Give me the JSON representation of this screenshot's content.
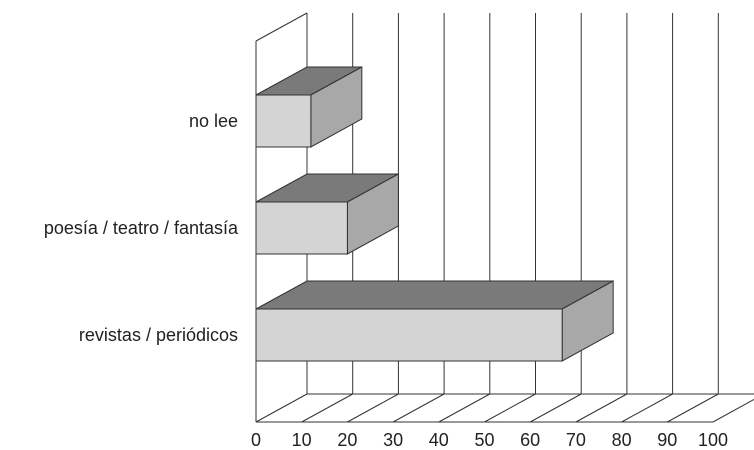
{
  "chart_data": {
    "type": "bar",
    "orientation": "horizontal",
    "style": "3d",
    "categories": [
      "revistas / periódicos",
      "poesía / teatro / fantasía",
      "no lee"
    ],
    "values": [
      67,
      20,
      12
    ],
    "title": "",
    "xlabel": "",
    "ylabel": "",
    "xlim": [
      0,
      100
    ],
    "xticks": [
      "0",
      "10",
      "20",
      "30",
      "40",
      "50",
      "60",
      "70",
      "80",
      "90",
      "100"
    ],
    "grid": "vertical",
    "legend": "none",
    "colors": {
      "bar_front": "#d4d4d4",
      "bar_top": "#7a7a7a",
      "bar_side": "#a8a8a8",
      "lines": "#333333"
    }
  }
}
